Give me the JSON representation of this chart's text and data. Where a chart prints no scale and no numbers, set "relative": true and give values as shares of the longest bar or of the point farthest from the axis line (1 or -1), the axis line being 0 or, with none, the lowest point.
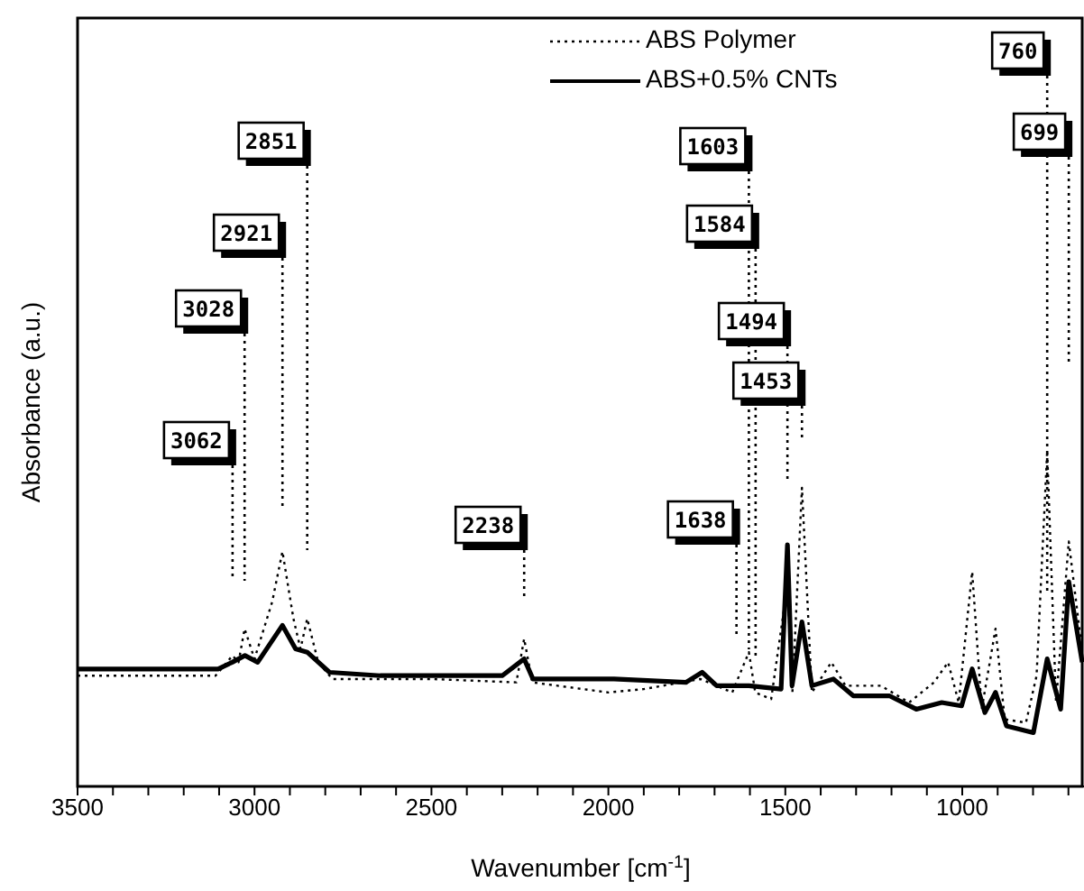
{
  "chart_data": {
    "type": "line",
    "xlabel": "Wavenumber [cm$^{-1}$]",
    "ylabel": "Absorbance (a.u.)",
    "relative": true,
    "legend": "top",
    "xlim": [
      3500,
      656
    ],
    "xticks": [
      3500,
      {
        "value": 3400,
        "label": null
      },
      {
        "value": 3300,
        "label": null
      },
      {
        "value": 3200,
        "label": null
      },
      {
        "value": 3100,
        "label": null
      },
      3000,
      {
        "value": 2900,
        "label": null
      },
      {
        "value": 2800,
        "label": null
      },
      {
        "value": 2700,
        "label": null
      },
      {
        "value": 2600,
        "label": null
      },
      2500,
      {
        "value": 2400,
        "label": null
      },
      {
        "value": 2300,
        "label": null
      },
      {
        "value": 2200,
        "label": null
      },
      {
        "value": 2100,
        "label": null
      },
      2000,
      {
        "value": 1900,
        "label": null
      },
      {
        "value": 1800,
        "label": null
      },
      {
        "value": 1700,
        "label": null
      },
      {
        "value": 1600,
        "label": null
      },
      1500,
      {
        "value": 1400,
        "label": null
      },
      {
        "value": 1300,
        "label": null
      },
      {
        "value": 1200,
        "label": null
      },
      {
        "value": 1100,
        "label": null
      },
      1000,
      {
        "value": 900,
        "label": null
      },
      {
        "value": 800,
        "label": null
      },
      {
        "value": 700,
        "label": null
      }
    ],
    "series": [
      {
        "name": "ABS Polymer",
        "color": "#000000",
        "line_style": "dotted",
        "x": [
          3500,
          3110,
          3062,
          3045,
          3028,
          3000,
          2950,
          2921,
          2890,
          2870,
          2851,
          2820,
          2780,
          2500,
          2260,
          2238,
          2215,
          2000,
          1900,
          1740,
          1650,
          1603,
          1585,
          1540,
          1494,
          1480,
          1453,
          1425,
          1370,
          1330,
          1230,
          1150,
          1080,
          1040,
          1010,
          972,
          945,
          906,
          880,
          820,
          790,
          760,
          735,
          699,
          661
        ],
        "values": [
          0.33,
          0.33,
          0.39,
          0.37,
          0.47,
          0.38,
          0.55,
          0.7,
          0.5,
          0.41,
          0.5,
          0.37,
          0.32,
          0.32,
          0.31,
          0.44,
          0.31,
          0.28,
          0.29,
          0.32,
          0.28,
          0.4,
          0.28,
          0.26,
          0.6,
          0.28,
          0.89,
          0.28,
          0.37,
          0.3,
          0.3,
          0.25,
          0.31,
          0.37,
          0.25,
          0.64,
          0.23,
          0.47,
          0.2,
          0.19,
          0.33,
          1,
          0.25,
          0.73,
          0.4
        ]
      },
      {
        "name": "ABS+0.5% CNTs",
        "color": "#000000",
        "line_style": "solid",
        "x": [
          3500,
          3103,
          3063,
          3027,
          2991,
          2921,
          2884,
          2851,
          2788,
          2645,
          2340,
          2300,
          2238,
          2213,
          1984,
          1781,
          1735,
          1694,
          1603,
          1512,
          1494,
          1481,
          1453,
          1425,
          1364,
          1308,
          1206,
          1130,
          1058,
          1002,
          972,
          936,
          906,
          875,
          799,
          760,
          722,
          699,
          661
        ],
        "values": [
          0.35,
          0.35,
          0.37,
          0.39,
          0.37,
          0.48,
          0.41,
          0.4,
          0.34,
          0.33,
          0.33,
          0.33,
          0.38,
          0.32,
          0.32,
          0.31,
          0.34,
          0.3,
          0.3,
          0.29,
          0.72,
          0.3,
          0.49,
          0.3,
          0.32,
          0.27,
          0.27,
          0.23,
          0.25,
          0.24,
          0.35,
          0.22,
          0.28,
          0.18,
          0.16,
          0.38,
          0.23,
          0.61,
          0.37
        ]
      }
    ],
    "ref_lines": [
      {
        "axis": "x",
        "value": 3062,
        "label": "3062",
        "line_style": "dotted"
      },
      {
        "axis": "x",
        "value": 3028,
        "label": "3028",
        "line_style": "dotted"
      },
      {
        "axis": "x",
        "value": 2921,
        "label": "2921",
        "line_style": "dotted"
      },
      {
        "axis": "x",
        "value": 2851,
        "label": "2851",
        "line_style": "dotted"
      },
      {
        "axis": "x",
        "value": 2238,
        "label": "2238",
        "line_style": "dotted"
      },
      {
        "axis": "x",
        "value": 1638,
        "label": "1638",
        "line_style": "dotted"
      },
      {
        "axis": "x",
        "value": 1603,
        "label": "1603",
        "line_style": "dotted"
      },
      {
        "axis": "x",
        "value": 1584,
        "label": "1584",
        "line_style": "dotted"
      },
      {
        "axis": "x",
        "value": 1494,
        "label": "1494",
        "line_style": "dotted"
      },
      {
        "axis": "x",
        "value": 1453,
        "label": "1453",
        "line_style": "dotted"
      },
      {
        "axis": "x",
        "value": 760,
        "label": "760",
        "line_style": "dotted"
      },
      {
        "axis": "x",
        "value": 699,
        "label": "699",
        "line_style": "dotted"
      }
    ]
  }
}
